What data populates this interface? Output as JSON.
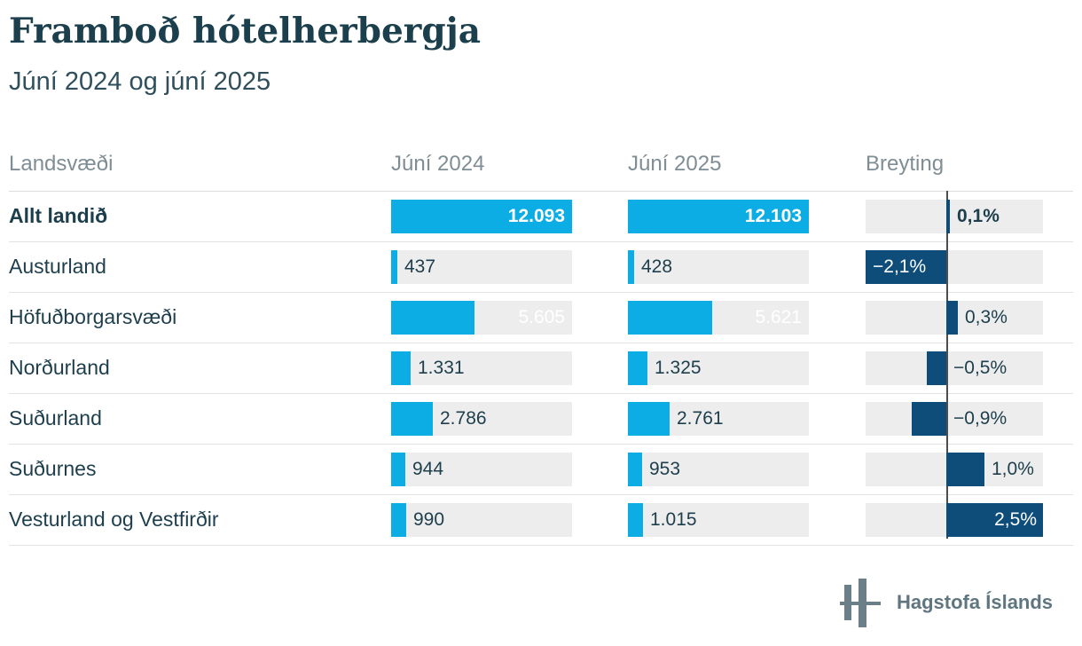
{
  "title": "Framboð hótelherbergja",
  "subtitle": "Júní 2024 og júní 2025",
  "columns": [
    "Landsvæði",
    "Júní 2024",
    "Júní 2025",
    "Breyting"
  ],
  "footer": {
    "logo_label": "Hagstofa Íslands",
    "logo_icon": "hagstofa-islands-bars-logo"
  },
  "colors": {
    "accent_cyan": "#0cade4",
    "navy": "#0e4d7a",
    "bar_track_gray": "#ededed",
    "text_dark": "#1d3e4c",
    "header_gray": "#7f8d95",
    "axis_line": "#4d4d4d",
    "title_teal": "#1b3f4c",
    "logo_gray_teal": "#6a7f87"
  },
  "chart_data": {
    "type": "bar",
    "orientation": "horizontal",
    "title": "Framboð hótelherbergja",
    "subtitle": "Júní 2024 og júní 2025",
    "categories": [
      "Allt landið",
      "Austurland",
      "Höfuðborgarsvæði",
      "Norðurland",
      "Suðurland",
      "Suðurnes",
      "Vesturland og Vestfirðir"
    ],
    "series": [
      {
        "name": "Júní 2024",
        "values": [
          12093,
          437,
          5605,
          1331,
          2786,
          944,
          990
        ]
      },
      {
        "name": "Júní 2025",
        "values": [
          12103,
          428,
          5621,
          1325,
          2761,
          953,
          1015
        ]
      },
      {
        "name": "Breyting",
        "unit": "%",
        "values": [
          0.1,
          -2.1,
          0.3,
          -0.5,
          -0.9,
          1.0,
          2.5
        ]
      }
    ],
    "value_axis_max": 12103,
    "change_axis_range": [
      -2.1,
      2.5
    ],
    "grid": false,
    "legend": false
  },
  "rows": [
    {
      "label": "Allt landið",
      "bold": true,
      "june_2024": "12.093",
      "june_2025": "12.103",
      "change": "0,1%",
      "n2024": 12093,
      "n2025": 12103,
      "change_value": 0.1
    },
    {
      "label": "Austurland",
      "bold": false,
      "june_2024": "437",
      "june_2025": "428",
      "change": "−2,1%",
      "n2024": 437,
      "n2025": 428,
      "change_value": -2.1
    },
    {
      "label": "Höfuðborgarsvæði",
      "bold": false,
      "june_2024": "5.605",
      "june_2025": "5.621",
      "change": "0,3%",
      "n2024": 5605,
      "n2025": 5621,
      "change_value": 0.3
    },
    {
      "label": "Norðurland",
      "bold": false,
      "june_2024": "1.331",
      "june_2025": "1.325",
      "change": "−0,5%",
      "n2024": 1331,
      "n2025": 1325,
      "change_value": -0.5
    },
    {
      "label": "Suðurland",
      "bold": false,
      "june_2024": "2.786",
      "june_2025": "2.761",
      "change": "−0,9%",
      "n2024": 2786,
      "n2025": 2761,
      "change_value": -0.9
    },
    {
      "label": "Suðurnes",
      "bold": false,
      "june_2024": "944",
      "june_2025": "953",
      "change": "1,0%",
      "n2024": 944,
      "n2025": 953,
      "change_value": 1.0
    },
    {
      "label": "Vesturland og Vestfirðir",
      "bold": false,
      "june_2024": "990",
      "june_2025": "1.015",
      "change": "2,5%",
      "n2024": 990,
      "n2025": 1015,
      "change_value": 2.5
    }
  ]
}
